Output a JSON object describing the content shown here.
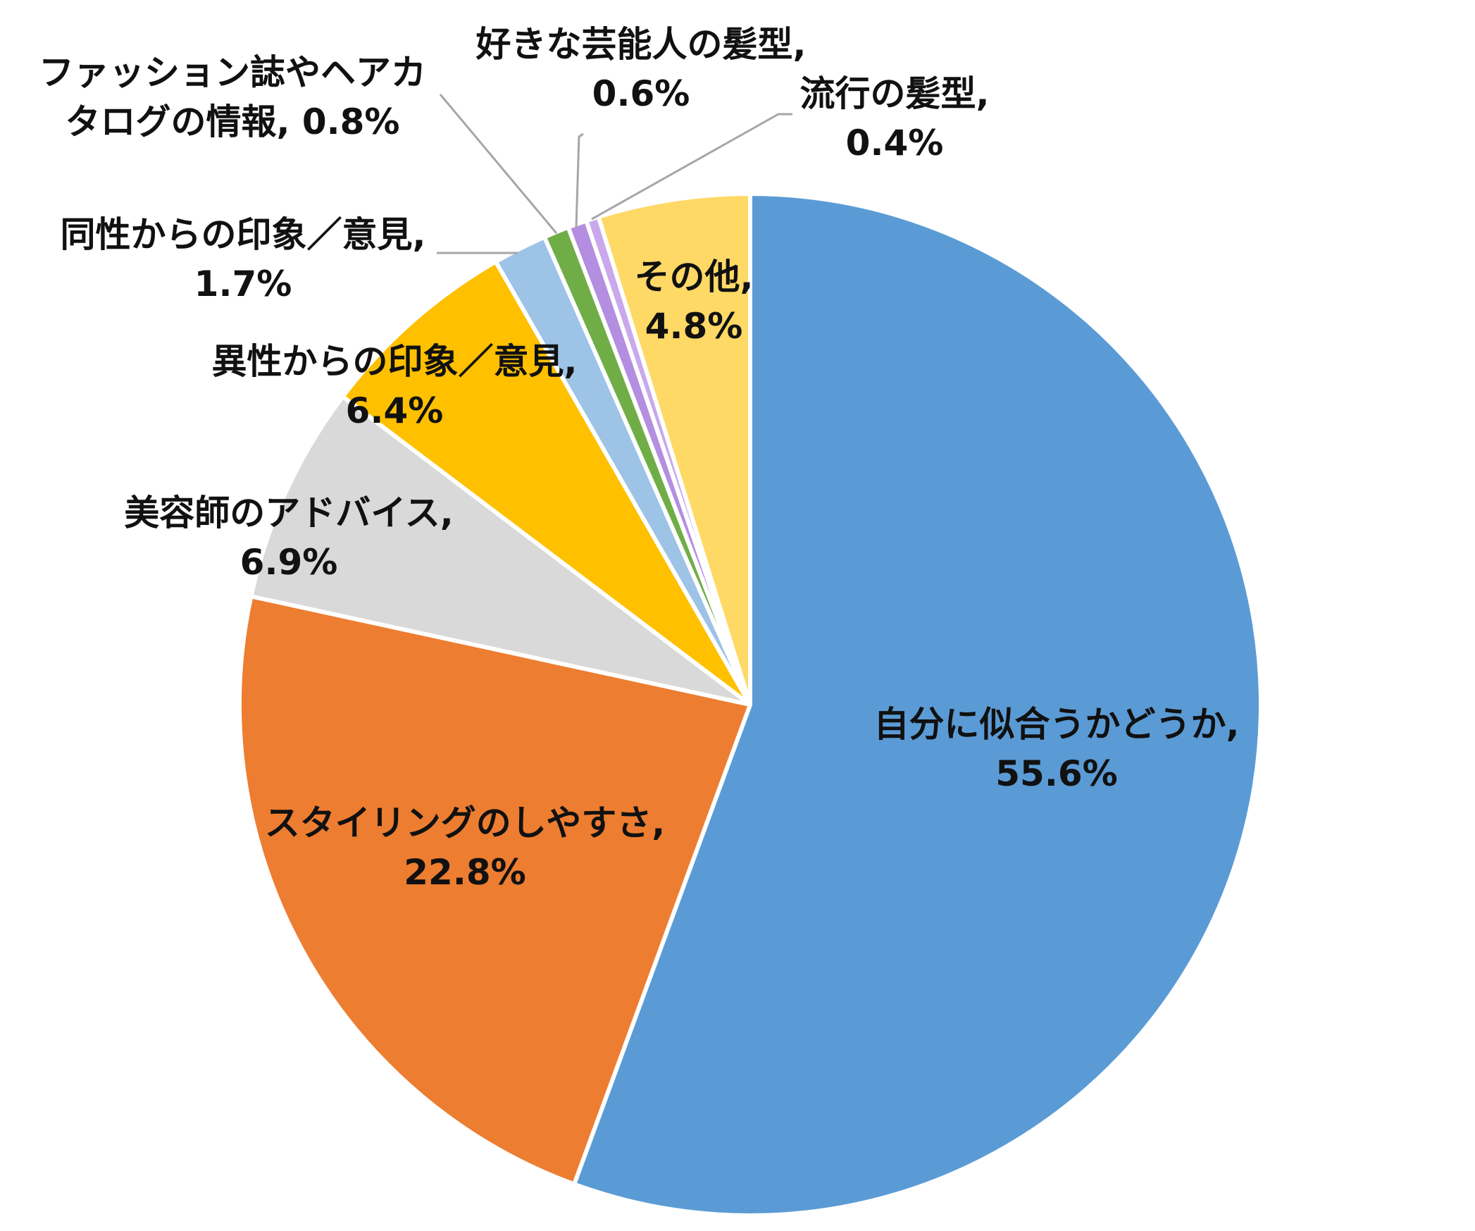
{
  "chart_data": {
    "type": "pie",
    "title": "",
    "start_angle_deg": 0,
    "direction": "clockwise",
    "label_format": "{category}, {value}%",
    "slices": [
      {
        "id": "niau",
        "label_lines": [
          "自分に似合うかどうか,",
          "55.6%"
        ],
        "category": "自分に似合うかどうか",
        "value": 55.6,
        "color": "#5B9BD5",
        "leader": false
      },
      {
        "id": "styling",
        "label_lines": [
          "スタイリングのしやすさ,",
          "22.8%"
        ],
        "category": "スタイリングのしやすさ",
        "value": 22.8,
        "color": "#ED7D31",
        "leader": false
      },
      {
        "id": "biyoushi",
        "label_lines": [
          "美容師のアドバイス,",
          "6.9%"
        ],
        "category": "美容師のアドバイス",
        "value": 6.9,
        "color": "#D9D9D9",
        "leader": false
      },
      {
        "id": "isei",
        "label_lines": [
          "異性からの印象／意見,",
          "6.4%"
        ],
        "category": "異性からの印象／意見",
        "value": 6.4,
        "color": "#FFC000",
        "leader": false
      },
      {
        "id": "dousei",
        "label_lines": [
          "同性からの印象／意見,",
          "1.7%"
        ],
        "category": "同性からの印象／意見",
        "value": 1.7,
        "color": "#9DC3E6",
        "leader": true
      },
      {
        "id": "fashion",
        "label_lines": [
          "ファッション誌やヘアカ",
          "タログの情報, 0.8%"
        ],
        "category": "ファッション誌やヘアカタログの情報",
        "value": 0.8,
        "color": "#70AD47",
        "leader": true
      },
      {
        "id": "geinoujin",
        "label_lines": [
          "好きな芸能人の髪型,",
          "0.6%"
        ],
        "category": "好きな芸能人の髪型",
        "value": 0.6,
        "color": "#B48EE0",
        "leader": true
      },
      {
        "id": "ryuukou",
        "label_lines": [
          "流行の髪型,",
          "0.4%"
        ],
        "category": "流行の髪型",
        "value": 0.4,
        "color": "#C9A8EC",
        "leader": true
      },
      {
        "id": "sonota",
        "label_lines": [
          "その他,",
          "4.8%"
        ],
        "category": "その他",
        "value": 4.8,
        "color": "#FFD966",
        "leader": false
      }
    ]
  }
}
